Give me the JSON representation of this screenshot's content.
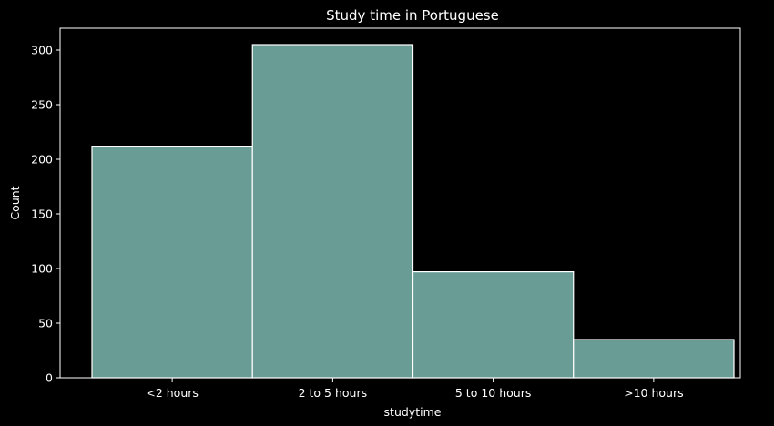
{
  "chart_data": {
    "type": "bar",
    "title": "Study time in Portuguese",
    "xlabel": "studytime",
    "ylabel": "Count",
    "categories": [
      "<2 hours",
      "2 to 5 hours",
      "5 to 10 hours",
      ">10 hours"
    ],
    "values": [
      212,
      305,
      97,
      35
    ],
    "ylim": [
      0,
      320
    ],
    "yticks": [
      0,
      50,
      100,
      150,
      200,
      250,
      300
    ],
    "grid": false,
    "colors": {
      "background": "#000000",
      "bar_fill": "#699c95",
      "bar_edge": "#ffffff",
      "axes": "#ffffff",
      "text": "#ffffff"
    }
  }
}
